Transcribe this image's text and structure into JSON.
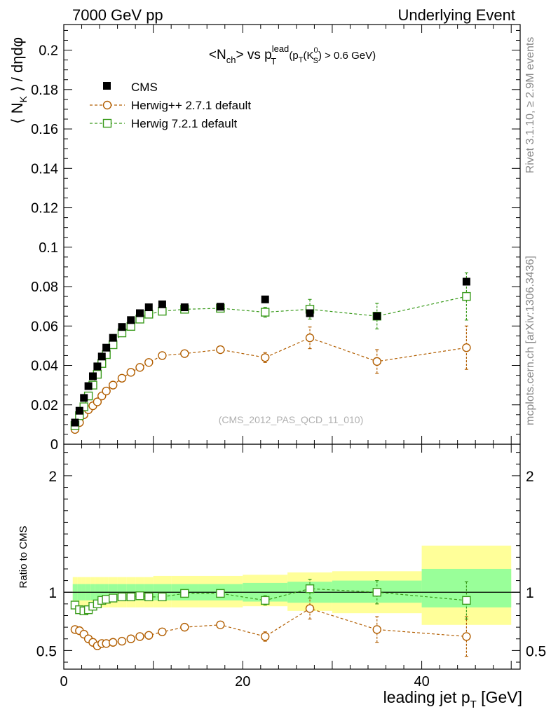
{
  "header": {
    "left": "7000 GeV pp",
    "right": "Underlying Event"
  },
  "side": {
    "rivet": "Rivet 3.1.10, ≥ 2.9M events",
    "mcplots": "mcplots.cern.ch [arXiv:1306.3436]"
  },
  "colors": {
    "cms": "#000000",
    "herwigpp": "#b25e00",
    "herwig7": "#3a9b1c",
    "band_inner": "#99ff99",
    "band_outer": "#ffff99"
  },
  "chart_data": [
    {
      "type": "scatter",
      "panel": "main",
      "title_parts": {
        "pre": "<N",
        "sub1": "ch",
        "mid": "> vs p",
        "sup2": "lead",
        "sub2": "T",
        "tail1": " (p",
        "sub3": "T",
        "tail2": "(K",
        "sup4": "0",
        "sub4": "S",
        "tail3": ") > 0.6 GeV)"
      },
      "ylabel_parts": {
        "pre": "⟨ N",
        "sub": "K",
        "post": " ⟩ / dηdφ"
      },
      "watermark": "(CMS_2012_PAS_QCD_11_010)",
      "xlim": [
        0,
        51
      ],
      "ylim": [
        0,
        0.213
      ],
      "yticks": [
        0,
        0.02,
        0.04,
        0.06,
        0.08,
        0.1,
        0.12,
        0.14,
        0.16,
        0.18,
        0.2
      ],
      "ytick_labels": [
        "0",
        "0.02",
        "0.04",
        "0.06",
        "0.08",
        "0.1",
        "0.12",
        "0.14",
        "0.16",
        "0.18",
        "0.2"
      ],
      "legend_position": "top-left",
      "legend": [
        "CMS",
        "Herwig++ 2.7.1 default",
        "Herwig 7.2.1 default"
      ],
      "series": [
        {
          "name": "CMS",
          "marker": "filled-square",
          "x": [
            1.25,
            1.75,
            2.25,
            2.75,
            3.25,
            3.75,
            4.25,
            4.75,
            5.5,
            6.5,
            7.5,
            8.5,
            9.5,
            11,
            13.5,
            17.5,
            22.5,
            27.5,
            35,
            45
          ],
          "y": [
            0.011,
            0.017,
            0.0235,
            0.0295,
            0.0345,
            0.0395,
            0.0445,
            0.049,
            0.054,
            0.0595,
            0.063,
            0.0665,
            0.0695,
            0.071,
            0.0695,
            0.0698,
            0.0735,
            0.0665,
            0.065,
            0.0825
          ]
        },
        {
          "name": "Herwig++ 2.7.1 default",
          "marker": "open-circle",
          "x": [
            1.25,
            1.75,
            2.25,
            2.75,
            3.25,
            3.75,
            4.25,
            4.75,
            5.5,
            6.5,
            7.5,
            8.5,
            9.5,
            11,
            13.5,
            17.5,
            22.5,
            27.5,
            35,
            45
          ],
          "y": [
            0.0075,
            0.011,
            0.015,
            0.0175,
            0.0195,
            0.0215,
            0.0245,
            0.027,
            0.03,
            0.0335,
            0.0365,
            0.039,
            0.0415,
            0.045,
            0.046,
            0.048,
            0.044,
            0.054,
            0.042,
            0.049
          ],
          "yerr": [
            0.0004,
            0.0004,
            0.0004,
            0.0004,
            0.0004,
            0.0004,
            0.0004,
            0.0004,
            0.0004,
            0.0005,
            0.0005,
            0.0005,
            0.0006,
            0.0008,
            0.001,
            0.0015,
            0.0025,
            0.0055,
            0.006,
            0.011
          ]
        },
        {
          "name": "Herwig 7.2.1 default",
          "marker": "open-square",
          "x": [
            1.25,
            1.75,
            2.25,
            2.75,
            3.25,
            3.75,
            4.25,
            4.75,
            5.5,
            6.5,
            7.5,
            8.5,
            9.5,
            11,
            13.5,
            17.5,
            22.5,
            27.5,
            35,
            45
          ],
          "y": [
            0.0095,
            0.0145,
            0.019,
            0.0245,
            0.03,
            0.0355,
            0.041,
            0.0455,
            0.0505,
            0.0565,
            0.0598,
            0.0635,
            0.066,
            0.0675,
            0.0685,
            0.069,
            0.067,
            0.0685,
            0.065,
            0.075
          ],
          "yerr": [
            0.0004,
            0.0004,
            0.0004,
            0.0004,
            0.0004,
            0.0004,
            0.0004,
            0.0004,
            0.0004,
            0.0005,
            0.0005,
            0.0005,
            0.0006,
            0.0008,
            0.001,
            0.0015,
            0.0025,
            0.005,
            0.0065,
            0.012
          ]
        }
      ]
    },
    {
      "type": "scatter",
      "panel": "ratio",
      "ylabel": "Ratio to CMS",
      "xlabel_parts": {
        "pre": "leading jet p",
        "sub": "T",
        "post": " [GeV]"
      },
      "xlim": [
        0,
        51
      ],
      "ylim": [
        0.34,
        2.27
      ],
      "xticks": [
        0,
        20,
        40
      ],
      "xtick_labels": [
        "0",
        "20",
        "40"
      ],
      "yticks": [
        0.5,
        1,
        2
      ],
      "ytick_labels": [
        "0.5",
        "1",
        "2"
      ],
      "bands": {
        "edges": [
          1,
          1.5,
          2,
          2.5,
          3,
          3.5,
          4,
          4.5,
          5,
          6,
          7,
          8,
          9,
          10,
          12,
          15,
          20,
          25,
          30,
          40,
          50
        ],
        "inner_lo": [
          0.93,
          0.93,
          0.93,
          0.93,
          0.93,
          0.93,
          0.93,
          0.93,
          0.93,
          0.93,
          0.93,
          0.93,
          0.93,
          0.93,
          0.93,
          0.93,
          0.92,
          0.91,
          0.91,
          0.87
        ],
        "inner_hi": [
          1.07,
          1.07,
          1.07,
          1.07,
          1.07,
          1.07,
          1.07,
          1.07,
          1.07,
          1.07,
          1.07,
          1.07,
          1.07,
          1.07,
          1.07,
          1.07,
          1.08,
          1.09,
          1.1,
          1.2
        ],
        "outer_lo": [
          0.87,
          0.87,
          0.87,
          0.87,
          0.87,
          0.87,
          0.87,
          0.87,
          0.87,
          0.87,
          0.87,
          0.87,
          0.87,
          0.87,
          0.87,
          0.87,
          0.88,
          0.84,
          0.82,
          0.72
        ],
        "outer_hi": [
          1.13,
          1.13,
          1.13,
          1.13,
          1.13,
          1.13,
          1.13,
          1.13,
          1.13,
          1.13,
          1.13,
          1.13,
          1.13,
          1.14,
          1.14,
          1.14,
          1.15,
          1.17,
          1.18,
          1.4
        ]
      },
      "series": [
        {
          "name": "Herwig++ 2.7.1 default",
          "marker": "open-circle",
          "x": [
            1.25,
            1.75,
            2.25,
            2.75,
            3.25,
            3.75,
            4.25,
            4.75,
            5.5,
            6.5,
            7.5,
            8.5,
            9.5,
            11,
            13.5,
            17.5,
            22.5,
            27.5,
            35,
            45
          ],
          "y": [
            0.68,
            0.67,
            0.64,
            0.6,
            0.57,
            0.54,
            0.56,
            0.56,
            0.57,
            0.58,
            0.6,
            0.62,
            0.63,
            0.66,
            0.7,
            0.72,
            0.62,
            0.86,
            0.68,
            0.62
          ],
          "yerr": [
            0.01,
            0.01,
            0.01,
            0.01,
            0.01,
            0.01,
            0.01,
            0.01,
            0.01,
            0.01,
            0.01,
            0.01,
            0.01,
            0.01,
            0.015,
            0.02,
            0.04,
            0.09,
            0.11,
            0.17
          ]
        },
        {
          "name": "Herwig 7.2.1 default",
          "marker": "open-square",
          "x": [
            1.25,
            1.75,
            2.25,
            2.75,
            3.25,
            3.75,
            4.25,
            4.75,
            5.5,
            6.5,
            7.5,
            8.5,
            9.5,
            11,
            13.5,
            17.5,
            22.5,
            27.5,
            35,
            45
          ],
          "y": [
            0.89,
            0.85,
            0.84,
            0.85,
            0.88,
            0.9,
            0.93,
            0.94,
            0.95,
            0.96,
            0.96,
            0.97,
            0.96,
            0.96,
            0.99,
            0.99,
            0.93,
            1.03,
            1.0,
            0.93
          ],
          "yerr": [
            0.01,
            0.01,
            0.01,
            0.01,
            0.01,
            0.01,
            0.01,
            0.01,
            0.01,
            0.01,
            0.01,
            0.01,
            0.01,
            0.01,
            0.015,
            0.02,
            0.04,
            0.08,
            0.1,
            0.16
          ]
        }
      ]
    }
  ]
}
